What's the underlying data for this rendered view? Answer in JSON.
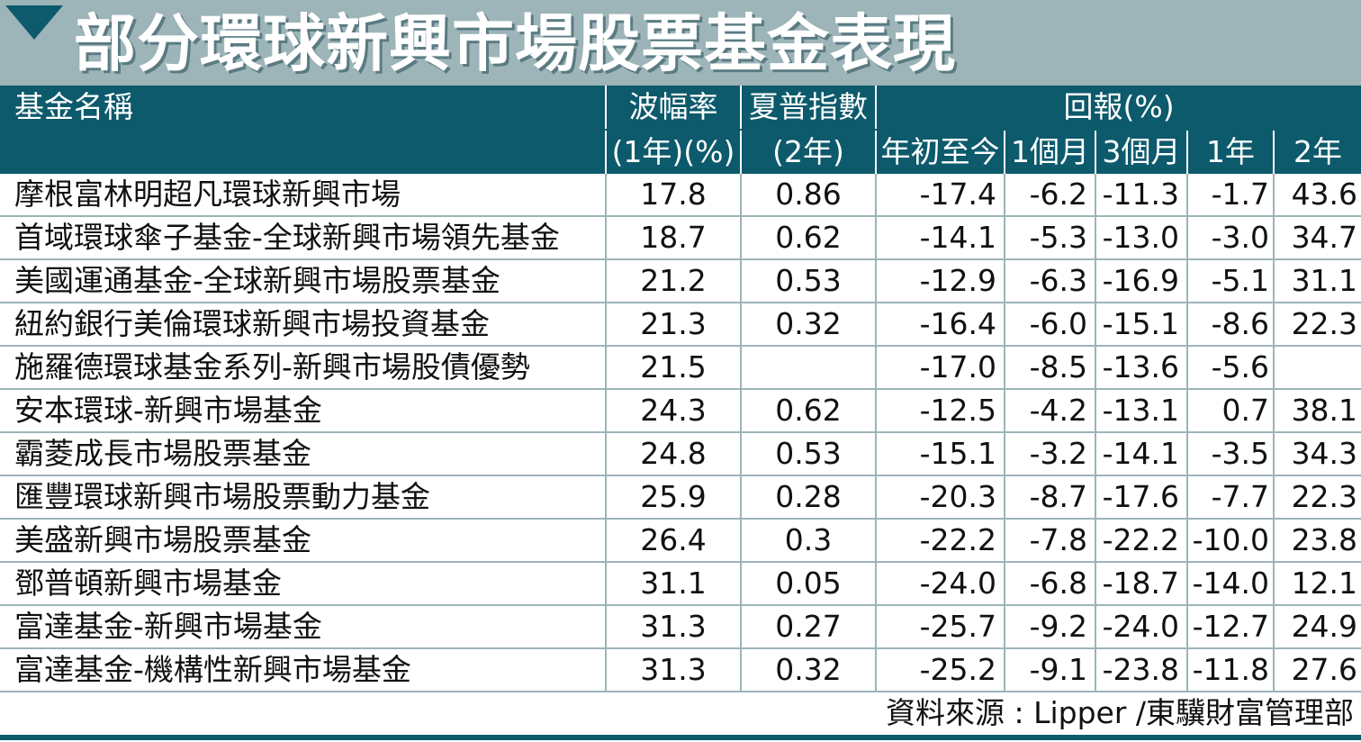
{
  "title": "部分環球新興市場股票基金表現",
  "headers": {
    "name": "基金名稱",
    "volatility": "波幅率",
    "volatility_sub": "(1年)(%)",
    "sharpe": "夏普指數",
    "sharpe_sub": "(2年)",
    "returns": "回報(%)",
    "ytd": "年初至今",
    "m1": "1個月",
    "m3": "3個月",
    "y1": "1年",
    "y2": "2年"
  },
  "rows": [
    {
      "name": "摩根富林明超凡環球新興市場",
      "volatility": "17.8",
      "sharpe": "0.86",
      "ytd": "-17.4",
      "m1": "-6.2",
      "m3": "-11.3",
      "y1": "-1.7",
      "y2": "43.6"
    },
    {
      "name": "首域環球傘子基金-全球新興市場領先基金",
      "volatility": "18.7",
      "sharpe": "0.62",
      "ytd": "-14.1",
      "m1": "-5.3",
      "m3": "-13.0",
      "y1": "-3.0",
      "y2": "34.7"
    },
    {
      "name": "美國運通基金-全球新興市場股票基金",
      "volatility": "21.2",
      "sharpe": "0.53",
      "ytd": "-12.9",
      "m1": "-6.3",
      "m3": "-16.9",
      "y1": "-5.1",
      "y2": "31.1"
    },
    {
      "name": "紐約銀行美倫環球新興市場投資基金",
      "volatility": "21.3",
      "sharpe": "0.32",
      "ytd": "-16.4",
      "m1": "-6.0",
      "m3": "-15.1",
      "y1": "-8.6",
      "y2": "22.3"
    },
    {
      "name": "施羅德環球基金系列-新興市場股債優勢",
      "volatility": "21.5",
      "sharpe": "",
      "ytd": "-17.0",
      "m1": "-8.5",
      "m3": "-13.6",
      "y1": "-5.6",
      "y2": ""
    },
    {
      "name": "安本環球-新興市場基金",
      "volatility": "24.3",
      "sharpe": "0.62",
      "ytd": "-12.5",
      "m1": "-4.2",
      "m3": "-13.1",
      "y1": "0.7",
      "y2": "38.1"
    },
    {
      "name": "霸菱成長市場股票基金",
      "volatility": "24.8",
      "sharpe": "0.53",
      "ytd": "-15.1",
      "m1": "-3.2",
      "m3": "-14.1",
      "y1": "-3.5",
      "y2": "34.3"
    },
    {
      "name": "匯豐環球新興市場股票動力基金",
      "volatility": "25.9",
      "sharpe": "0.28",
      "ytd": "-20.3",
      "m1": "-8.7",
      "m3": "-17.6",
      "y1": "-7.7",
      "y2": "22.3"
    },
    {
      "name": "美盛新興市場股票基金",
      "volatility": "26.4",
      "sharpe": "0.3",
      "ytd": "-22.2",
      "m1": "-7.8",
      "m3": "-22.2",
      "y1": "-10.0",
      "y2": "23.8"
    },
    {
      "name": "鄧普頓新興市場基金",
      "volatility": "31.1",
      "sharpe": "0.05",
      "ytd": "-24.0",
      "m1": "-6.8",
      "m3": "-18.7",
      "y1": "-14.0",
      "y2": "12.1"
    },
    {
      "name": "富達基金-新興市場基金",
      "volatility": "31.3",
      "sharpe": "0.27",
      "ytd": "-25.7",
      "m1": "-9.2",
      "m3": "-24.0",
      "y1": "-12.7",
      "y2": "24.9"
    },
    {
      "name": "富達基金-機構性新興市場基金",
      "volatility": "31.3",
      "sharpe": "0.32",
      "ytd": "-25.2",
      "m1": "-9.1",
      "m3": "-23.8",
      "y1": "-11.8",
      "y2": "27.6"
    }
  ],
  "source": "資料來源 : Lipper /東驥財富管理部",
  "colors": {
    "header_bg": "#0d5a6c",
    "title_bg": "#9db4b8",
    "row_rule": "#9db4b8"
  },
  "icons": [
    "down-triangle-icon"
  ]
}
